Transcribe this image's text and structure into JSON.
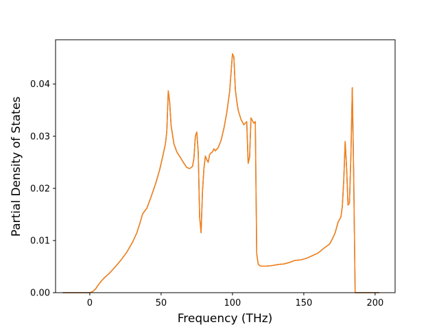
{
  "chart_data": {
    "type": "line",
    "title": "",
    "xlabel": "Frequency (THz)",
    "ylabel": "Partial Density of States",
    "xlim": [
      -24,
      214
    ],
    "ylim": [
      0,
      0.0485
    ],
    "xticks": [
      0,
      50,
      100,
      150,
      200
    ],
    "yticks": [
      0.0,
      0.01,
      0.02,
      0.03,
      0.04
    ],
    "ytick_labels": [
      "0.00",
      "0.01",
      "0.02",
      "0.03",
      "0.04"
    ],
    "grid": false,
    "legend": "none",
    "series": [
      {
        "color": "#1f77b4",
        "x": [
          -19,
          0,
          2,
          4,
          6,
          8,
          10,
          14,
          18,
          22,
          26,
          30,
          33,
          35,
          37,
          40,
          43,
          46,
          49,
          51,
          53,
          54,
          55,
          56,
          57,
          59,
          61,
          64,
          66,
          68,
          70,
          72,
          73,
          74,
          75,
          76,
          77,
          78,
          79,
          80,
          81,
          82,
          83,
          84,
          85,
          86,
          87,
          88,
          90,
          92,
          94,
          96,
          98,
          100,
          101,
          102,
          103,
          104,
          106,
          108,
          110,
          111,
          112,
          113,
          114,
          115,
          116,
          117,
          118,
          119,
          120,
          124,
          128,
          132,
          136,
          140,
          144,
          148,
          152,
          156,
          160,
          164,
          168,
          170,
          172,
          174,
          176,
          177,
          178,
          179,
          180,
          181,
          182,
          183,
          184,
          185,
          186,
          187,
          203
        ],
        "values": [
          0.0,
          0.0,
          0.0002,
          0.0007,
          0.0015,
          0.0022,
          0.0028,
          0.0038,
          0.005,
          0.0063,
          0.0078,
          0.0097,
          0.0115,
          0.0132,
          0.0151,
          0.0162,
          0.0184,
          0.0208,
          0.0236,
          0.026,
          0.0285,
          0.031,
          0.0387,
          0.0365,
          0.032,
          0.0285,
          0.027,
          0.0257,
          0.0248,
          0.024,
          0.0238,
          0.0242,
          0.0258,
          0.03,
          0.0308,
          0.027,
          0.0145,
          0.0115,
          0.0195,
          0.0238,
          0.0262,
          0.0255,
          0.025,
          0.0265,
          0.0268,
          0.027,
          0.0276,
          0.0272,
          0.0278,
          0.0292,
          0.0315,
          0.0345,
          0.0385,
          0.0458,
          0.0452,
          0.039,
          0.0368,
          0.035,
          0.0332,
          0.0322,
          0.0328,
          0.0248,
          0.026,
          0.0335,
          0.033,
          0.0325,
          0.0328,
          0.0075,
          0.0055,
          0.0052,
          0.0051,
          0.0051,
          0.0052,
          0.0054,
          0.0055,
          0.0058,
          0.0062,
          0.0063,
          0.0066,
          0.0071,
          0.0076,
          0.0085,
          0.0093,
          0.0103,
          0.0115,
          0.0135,
          0.0145,
          0.0165,
          0.0215,
          0.029,
          0.024,
          0.0168,
          0.0172,
          0.026,
          0.0393,
          0.022,
          0.0,
          0.0,
          0.0
        ]
      },
      {
        "color": "#ff7f0e",
        "x": [
          -19,
          0,
          2,
          4,
          6,
          8,
          10,
          14,
          18,
          22,
          26,
          30,
          33,
          35,
          37,
          40,
          43,
          46,
          49,
          51,
          53,
          54,
          55,
          56,
          57,
          59,
          61,
          64,
          66,
          68,
          70,
          72,
          73,
          74,
          75,
          76,
          77,
          78,
          79,
          80,
          81,
          82,
          83,
          84,
          85,
          86,
          87,
          88,
          90,
          92,
          94,
          96,
          98,
          100,
          101,
          102,
          103,
          104,
          106,
          108,
          110,
          111,
          112,
          113,
          114,
          115,
          116,
          117,
          118,
          119,
          120,
          124,
          128,
          132,
          136,
          140,
          144,
          148,
          152,
          156,
          160,
          164,
          168,
          170,
          172,
          174,
          176,
          177,
          178,
          179,
          180,
          181,
          182,
          183,
          184,
          185,
          186,
          187,
          203
        ],
        "values": [
          0.0,
          0.0,
          0.0002,
          0.0007,
          0.0015,
          0.0022,
          0.0028,
          0.0038,
          0.005,
          0.0063,
          0.0078,
          0.0097,
          0.0115,
          0.0132,
          0.0151,
          0.0162,
          0.0184,
          0.0208,
          0.0236,
          0.026,
          0.0285,
          0.031,
          0.0387,
          0.0365,
          0.032,
          0.0285,
          0.027,
          0.0257,
          0.0248,
          0.024,
          0.0238,
          0.0242,
          0.0258,
          0.03,
          0.0308,
          0.027,
          0.0145,
          0.0115,
          0.0195,
          0.0238,
          0.0262,
          0.0255,
          0.025,
          0.0265,
          0.0268,
          0.027,
          0.0276,
          0.0272,
          0.0278,
          0.0292,
          0.0315,
          0.0345,
          0.0385,
          0.0458,
          0.0452,
          0.039,
          0.0368,
          0.035,
          0.0332,
          0.0322,
          0.0328,
          0.0248,
          0.026,
          0.0335,
          0.033,
          0.0325,
          0.0328,
          0.0075,
          0.0055,
          0.0052,
          0.0051,
          0.0051,
          0.0052,
          0.0054,
          0.0055,
          0.0058,
          0.0062,
          0.0063,
          0.0066,
          0.0071,
          0.0076,
          0.0085,
          0.0093,
          0.0103,
          0.0115,
          0.0135,
          0.0145,
          0.0165,
          0.0215,
          0.029,
          0.024,
          0.0168,
          0.0172,
          0.026,
          0.0393,
          0.022,
          0.0,
          0.0,
          0.0
        ]
      }
    ]
  }
}
